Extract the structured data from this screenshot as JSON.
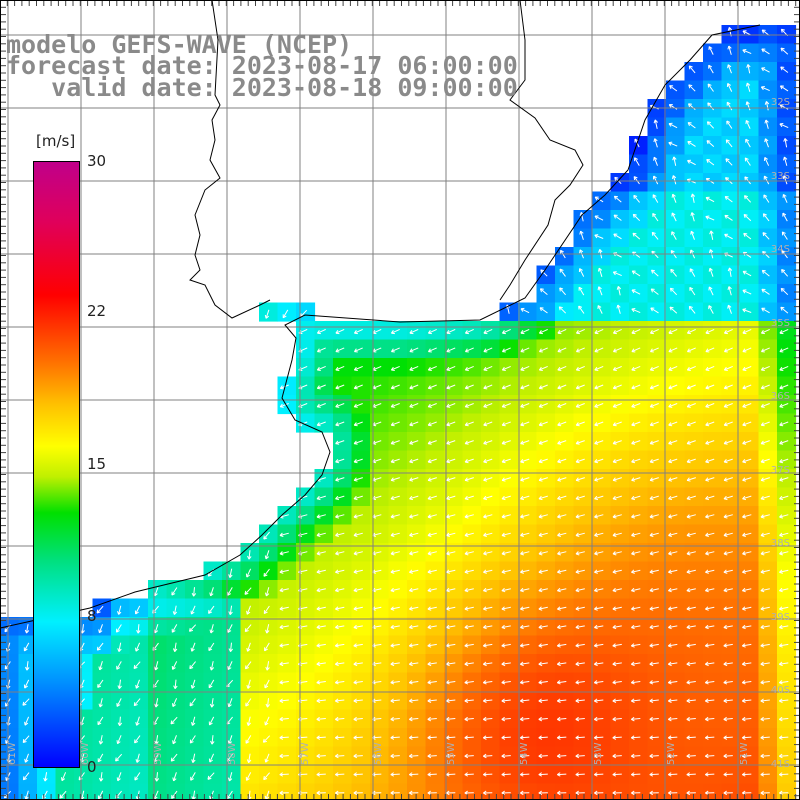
{
  "titles": {
    "line1": "modelo GEFS-WAVE (NCEP)",
    "line2": "forecast date: 2023-08-17 06:00:00",
    "line3": "   valid date: 2023-08-18 09:00:00"
  },
  "colorbar": {
    "unit": "[m/s]",
    "min": 0,
    "max": 30,
    "ticks": [
      {
        "label": "30",
        "value": 30
      },
      {
        "label": "22",
        "value": 22
      },
      {
        "label": "15",
        "value": 15
      },
      {
        "label": "8",
        "value": 8
      },
      {
        "label": "0",
        "value": 0
      }
    ],
    "colors": [
      "#0000ff",
      "#0090ff",
      "#00f0ff",
      "#00e080",
      "#00e000",
      "#c0f000",
      "#ffff00",
      "#ffc000",
      "#ff7000",
      "#ff0000",
      "#c0008a"
    ]
  },
  "map": {
    "lat_labels": [
      "32S",
      "33S",
      "34S",
      "35S",
      "36S",
      "37S",
      "38S",
      "39S",
      "40S",
      "41S"
    ],
    "lon_labels": [
      "61W",
      "60W",
      "59W",
      "58W",
      "57W",
      "56W",
      "55W",
      "54W",
      "53W",
      "52W",
      "51W"
    ],
    "land_color": "#ffffff",
    "grid_color": "#808080",
    "arrow_color": "#ffffff"
  }
}
